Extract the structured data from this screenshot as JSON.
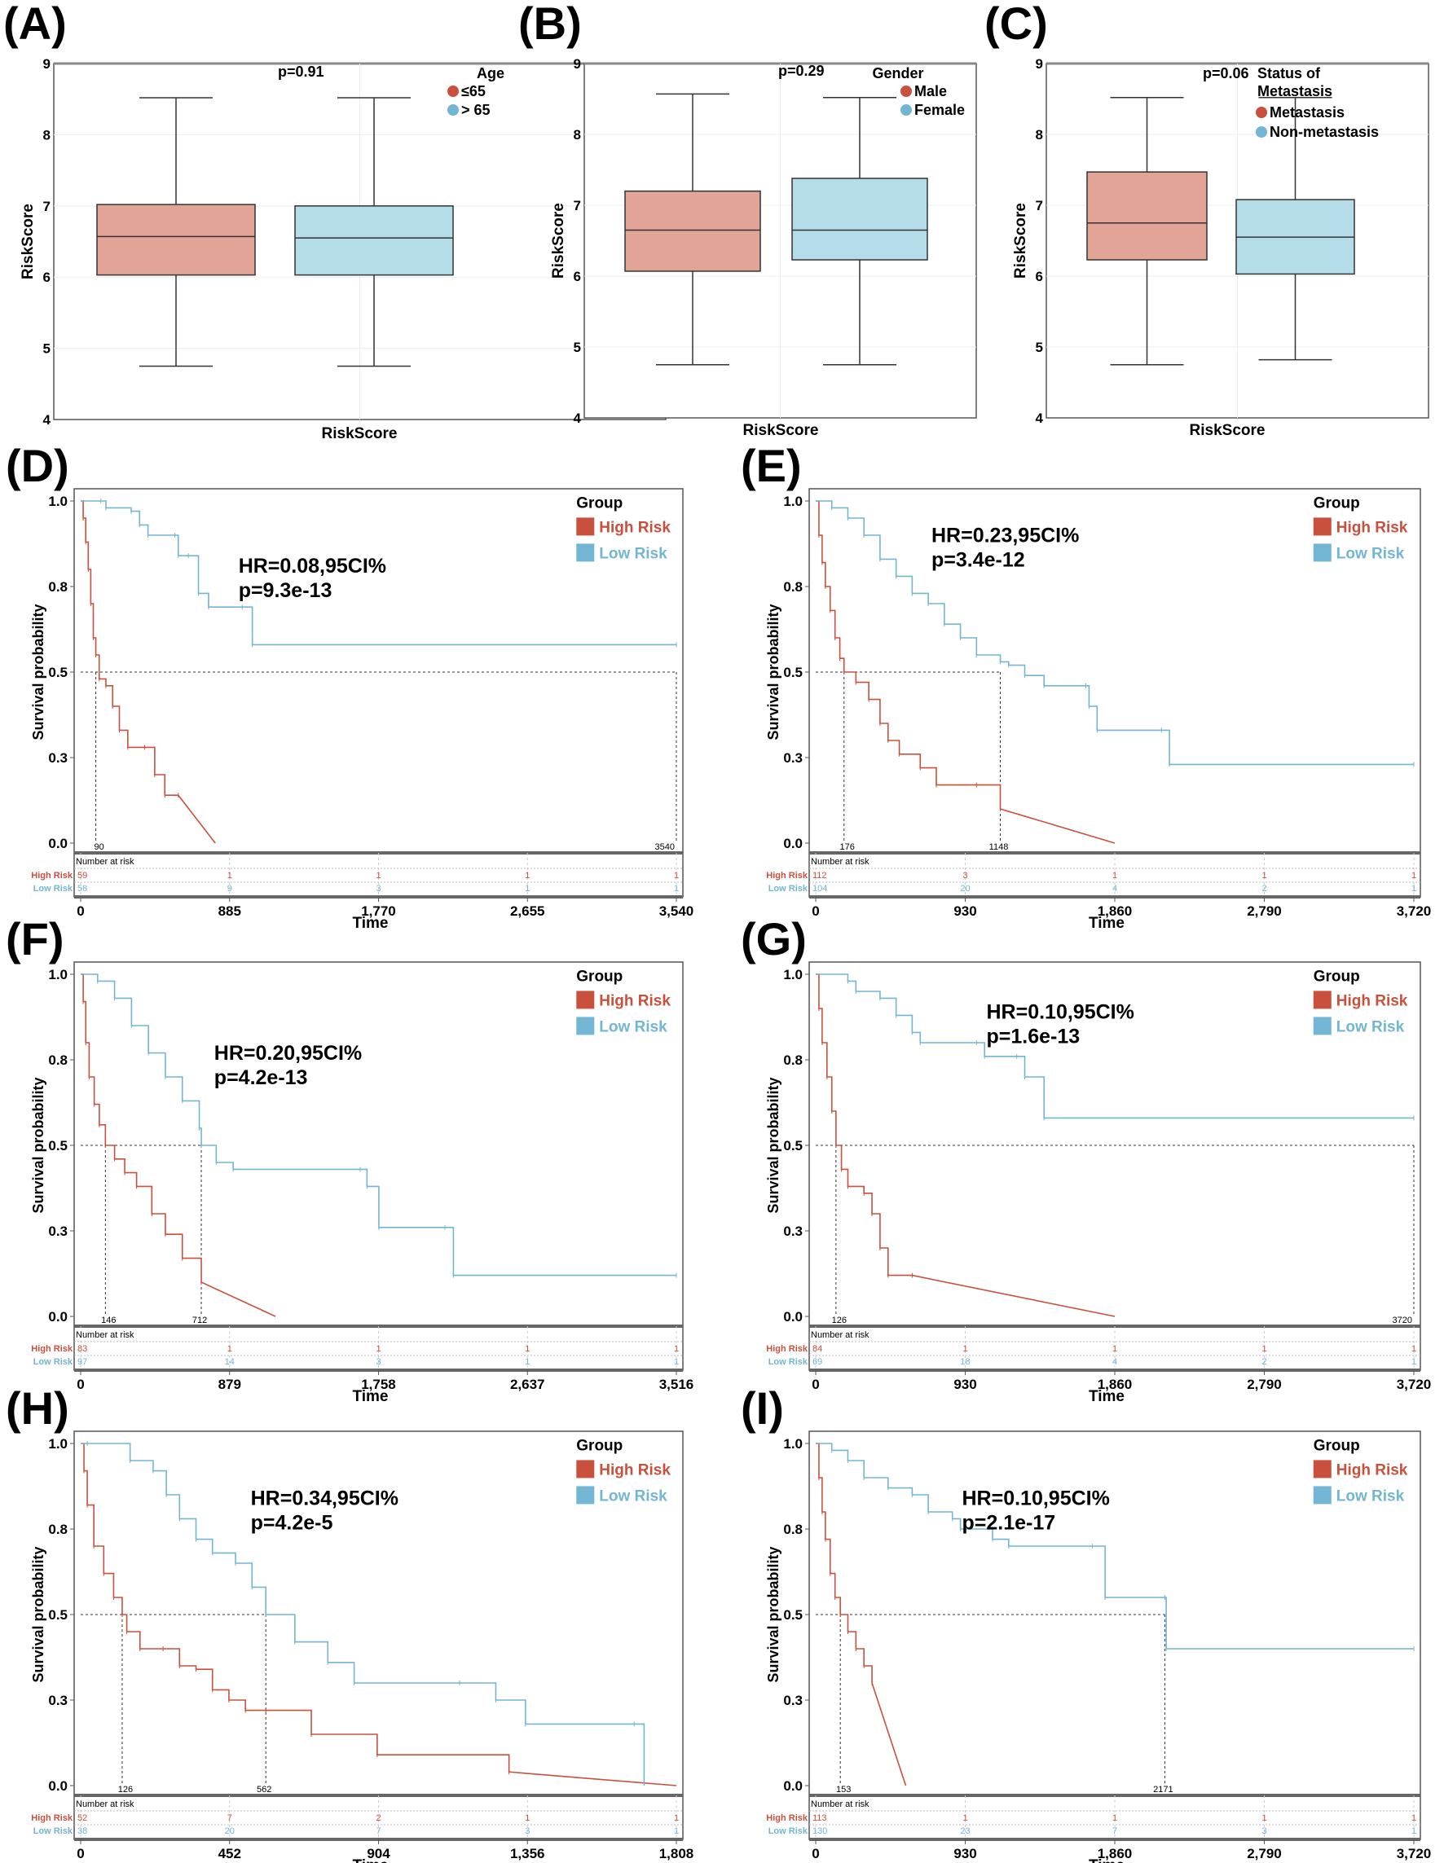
{
  "colors": {
    "high": "#c9503d",
    "low": "#72b6d3",
    "high_fill": "#e3a498",
    "low_fill": "#b4dde9",
    "grid": "#ececec"
  },
  "box_panels": [
    {
      "label": "(A)",
      "p": "p=0.91",
      "legend_title": [
        "Age"
      ],
      "groups": [
        "≤65",
        "> 65"
      ],
      "xlabel": "RiskScore",
      "ylabel": "RiskScore",
      "yticks": [
        "9",
        "8",
        "7",
        "6",
        "5",
        "4"
      ],
      "boxes": [
        {
          "min": 4.75,
          "q1": 6.03,
          "median": 6.57,
          "q3": 7.02,
          "max": 8.52
        },
        {
          "min": 4.75,
          "q1": 6.03,
          "median": 6.55,
          "q3": 7.0,
          "max": 8.52
        }
      ]
    },
    {
      "label": "(B)",
      "p": "p=0.29",
      "legend_title": [
        "Gender"
      ],
      "groups": [
        "Male",
        "Female"
      ],
      "xlabel": "RiskScore",
      "ylabel": "RiskScore",
      "yticks": [
        "9",
        "8",
        "7",
        "6",
        "5",
        "4"
      ],
      "boxes": [
        {
          "min": 4.75,
          "q1": 6.07,
          "median": 6.65,
          "q3": 7.2,
          "max": 8.57
        },
        {
          "min": 4.75,
          "q1": 6.23,
          "median": 6.65,
          "q3": 7.38,
          "max": 8.52
        }
      ]
    },
    {
      "label": "(C)",
      "p": "p=0.06",
      "legend_title": [
        "Status of",
        "Metastasis"
      ],
      "groups": [
        "Metastasis",
        "Non-metastasis"
      ],
      "xlabel": "RiskScore",
      "ylabel": "RiskScore",
      "yticks": [
        "9",
        "8",
        "7",
        "6",
        "5",
        "4"
      ],
      "boxes": [
        {
          "min": 4.75,
          "q1": 6.23,
          "median": 6.75,
          "q3": 7.47,
          "max": 8.52
        },
        {
          "min": 4.82,
          "q1": 6.03,
          "median": 6.55,
          "q3": 7.08,
          "max": 8.52
        }
      ]
    }
  ],
  "chart_data": [
    {
      "type": "line",
      "label": "(D)",
      "hr": "HR=0.08,95CI%",
      "p": "p=9.3e-13",
      "legend_title": "Group",
      "legend": [
        "High Risk",
        "Low Risk"
      ],
      "ylabel": "Survival probability",
      "xlabel": "Time",
      "yticks": [
        "1.0",
        "0.8",
        "0.5",
        "0.3",
        "0.0"
      ],
      "xticks": [
        "0",
        "885",
        "1,770",
        "2,655",
        "3,540"
      ],
      "medians": [
        "90",
        "3540"
      ],
      "risk_title": "Number at risk",
      "risk": {
        "high": [
          "59",
          "1",
          "1",
          "1",
          "1"
        ],
        "low": [
          "58",
          "9",
          "3",
          "1",
          "1"
        ]
      },
      "high": [
        [
          0,
          1
        ],
        [
          15,
          0.95
        ],
        [
          30,
          0.88
        ],
        [
          45,
          0.8
        ],
        [
          60,
          0.7
        ],
        [
          75,
          0.6
        ],
        [
          90,
          0.55
        ],
        [
          110,
          0.48
        ],
        [
          150,
          0.46
        ],
        [
          190,
          0.4
        ],
        [
          230,
          0.33
        ],
        [
          280,
          0.28
        ],
        [
          380,
          0.28
        ],
        [
          440,
          0.2
        ],
        [
          500,
          0.14
        ],
        [
          580,
          0.14
        ],
        [
          800,
          0
        ]
      ],
      "low": [
        [
          0,
          1
        ],
        [
          120,
          1
        ],
        [
          150,
          0.98
        ],
        [
          300,
          0.97
        ],
        [
          350,
          0.93
        ],
        [
          400,
          0.9
        ],
        [
          560,
          0.9
        ],
        [
          580,
          0.84
        ],
        [
          640,
          0.84
        ],
        [
          700,
          0.73
        ],
        [
          760,
          0.69
        ],
        [
          960,
          0.69
        ],
        [
          1020,
          0.58
        ],
        [
          3540,
          0.58
        ]
      ]
    },
    {
      "type": "line",
      "label": "(E)",
      "hr": "HR=0.23,95CI%",
      "p": "p=3.4e-12",
      "legend_title": "Group",
      "legend": [
        "High Risk",
        "Low Risk"
      ],
      "ylabel": "Survival probability",
      "xlabel": "Time",
      "yticks": [
        "1.0",
        "0.8",
        "0.5",
        "0.3",
        "0.0"
      ],
      "xticks": [
        "0",
        "930",
        "1,860",
        "2,790",
        "3,720"
      ],
      "medians": [
        "176",
        "1148"
      ],
      "risk_title": "Number at risk",
      "risk": {
        "high": [
          "112",
          "3",
          "1",
          "1",
          "1"
        ],
        "low": [
          "104",
          "20",
          "4",
          "2",
          "1"
        ]
      },
      "high": [
        [
          0,
          1
        ],
        [
          20,
          0.9
        ],
        [
          40,
          0.82
        ],
        [
          60,
          0.75
        ],
        [
          90,
          0.68
        ],
        [
          120,
          0.6
        ],
        [
          150,
          0.54
        ],
        [
          176,
          0.5
        ],
        [
          250,
          0.47
        ],
        [
          330,
          0.42
        ],
        [
          400,
          0.35
        ],
        [
          450,
          0.3
        ],
        [
          520,
          0.26
        ],
        [
          650,
          0.22
        ],
        [
          750,
          0.17
        ],
        [
          1000,
          0.17
        ],
        [
          1148,
          0.1
        ],
        [
          1860,
          0
        ]
      ],
      "low": [
        [
          0,
          1
        ],
        [
          100,
          0.98
        ],
        [
          200,
          0.95
        ],
        [
          300,
          0.9
        ],
        [
          400,
          0.83
        ],
        [
          500,
          0.78
        ],
        [
          600,
          0.73
        ],
        [
          700,
          0.7
        ],
        [
          800,
          0.64
        ],
        [
          900,
          0.6
        ],
        [
          1000,
          0.55
        ],
        [
          1148,
          0.53
        ],
        [
          1200,
          0.52
        ],
        [
          1300,
          0.49
        ],
        [
          1420,
          0.46
        ],
        [
          1680,
          0.46
        ],
        [
          1700,
          0.4
        ],
        [
          1750,
          0.33
        ],
        [
          2150,
          0.33
        ],
        [
          2200,
          0.23
        ],
        [
          3720,
          0.23
        ]
      ]
    },
    {
      "type": "line",
      "label": "(F)",
      "hr": "HR=0.20,95CI%",
      "p": "p=4.2e-13",
      "legend_title": "Group",
      "legend": [
        "High Risk",
        "Low Risk"
      ],
      "ylabel": "Survival probability",
      "xlabel": "Time",
      "yticks": [
        "1.0",
        "0.8",
        "0.5",
        "0.3",
        "0.0"
      ],
      "xticks": [
        "0",
        "879",
        "1,758",
        "2,637",
        "3,516"
      ],
      "medians": [
        "146",
        "712"
      ],
      "risk_title": "Number at risk",
      "risk": {
        "high": [
          "83",
          "1",
          "1",
          "1",
          "1"
        ],
        "low": [
          "97",
          "14",
          "3",
          "1",
          "1"
        ]
      },
      "high": [
        [
          0,
          1
        ],
        [
          15,
          0.92
        ],
        [
          30,
          0.8
        ],
        [
          50,
          0.7
        ],
        [
          80,
          0.62
        ],
        [
          110,
          0.56
        ],
        [
          146,
          0.5
        ],
        [
          200,
          0.46
        ],
        [
          260,
          0.42
        ],
        [
          330,
          0.38
        ],
        [
          420,
          0.3
        ],
        [
          500,
          0.24
        ],
        [
          600,
          0.17
        ],
        [
          712,
          0.1
        ],
        [
          1150,
          0
        ]
      ],
      "low": [
        [
          0,
          1
        ],
        [
          100,
          0.98
        ],
        [
          200,
          0.93
        ],
        [
          300,
          0.85
        ],
        [
          400,
          0.77
        ],
        [
          500,
          0.7
        ],
        [
          600,
          0.63
        ],
        [
          700,
          0.55
        ],
        [
          712,
          0.5
        ],
        [
          800,
          0.45
        ],
        [
          900,
          0.43
        ],
        [
          1650,
          0.43
        ],
        [
          1690,
          0.38
        ],
        [
          1760,
          0.26
        ],
        [
          2150,
          0.26
        ],
        [
          2200,
          0.12
        ],
        [
          3516,
          0.12
        ]
      ]
    },
    {
      "type": "line",
      "label": "(G)",
      "hr": "HR=0.10,95CI%",
      "p": "p=1.6e-13",
      "legend_title": "Group",
      "legend": [
        "High Risk",
        "Low Risk"
      ],
      "ylabel": "Survival probability",
      "xlabel": "Time",
      "yticks": [
        "1.0",
        "0.8",
        "0.5",
        "0.3",
        "0.0"
      ],
      "xticks": [
        "0",
        "930",
        "1,860",
        "2,790",
        "3,720"
      ],
      "medians": [
        "126",
        "3720"
      ],
      "risk_title": "Number at risk",
      "risk": {
        "high": [
          "84",
          "1",
          "1",
          "1",
          "1"
        ],
        "low": [
          "69",
          "18",
          "4",
          "2",
          "1"
        ]
      },
      "high": [
        [
          0,
          1
        ],
        [
          20,
          0.9
        ],
        [
          40,
          0.8
        ],
        [
          70,
          0.7
        ],
        [
          100,
          0.6
        ],
        [
          126,
          0.5
        ],
        [
          160,
          0.43
        ],
        [
          200,
          0.38
        ],
        [
          300,
          0.36
        ],
        [
          350,
          0.3
        ],
        [
          400,
          0.2
        ],
        [
          450,
          0.12
        ],
        [
          600,
          0.12
        ],
        [
          1860,
          0
        ]
      ],
      "low": [
        [
          0,
          1
        ],
        [
          200,
          0.98
        ],
        [
          250,
          0.95
        ],
        [
          400,
          0.93
        ],
        [
          500,
          0.88
        ],
        [
          600,
          0.83
        ],
        [
          650,
          0.8
        ],
        [
          1000,
          0.8
        ],
        [
          1050,
          0.76
        ],
        [
          1250,
          0.76
        ],
        [
          1300,
          0.7
        ],
        [
          1420,
          0.58
        ],
        [
          3720,
          0.58
        ]
      ]
    },
    {
      "type": "line",
      "label": "(H)",
      "hr": "HR=0.34,95CI%",
      "p": "p=4.2e-5",
      "legend_title": "Group",
      "legend": [
        "High Risk",
        "Low Risk"
      ],
      "ylabel": "Survival probability",
      "xlabel": "Time",
      "yticks": [
        "1.0",
        "0.8",
        "0.5",
        "0.3",
        "0.0"
      ],
      "xticks": [
        "0",
        "452",
        "904",
        "1,356",
        "1,808"
      ],
      "medians": [
        "126",
        "562"
      ],
      "risk_title": "Number at risk",
      "risk": {
        "high": [
          "52",
          "7",
          "2",
          "1",
          "1"
        ],
        "low": [
          "38",
          "20",
          "7",
          "3",
          "1"
        ]
      },
      "high": [
        [
          0,
          1
        ],
        [
          10,
          0.92
        ],
        [
          20,
          0.82
        ],
        [
          40,
          0.7
        ],
        [
          70,
          0.62
        ],
        [
          100,
          0.55
        ],
        [
          126,
          0.5
        ],
        [
          140,
          0.45
        ],
        [
          180,
          0.4
        ],
        [
          250,
          0.4
        ],
        [
          300,
          0.35
        ],
        [
          350,
          0.34
        ],
        [
          400,
          0.28
        ],
        [
          450,
          0.25
        ],
        [
          500,
          0.22
        ],
        [
          562,
          0.22
        ],
        [
          700,
          0.15
        ],
        [
          900,
          0.09
        ],
        [
          1300,
          0.04
        ],
        [
          1808,
          0
        ]
      ],
      "low": [
        [
          0,
          1
        ],
        [
          20,
          1
        ],
        [
          150,
          0.95
        ],
        [
          220,
          0.92
        ],
        [
          260,
          0.85
        ],
        [
          300,
          0.78
        ],
        [
          350,
          0.72
        ],
        [
          400,
          0.68
        ],
        [
          470,
          0.65
        ],
        [
          520,
          0.58
        ],
        [
          562,
          0.5
        ],
        [
          650,
          0.42
        ],
        [
          750,
          0.36
        ],
        [
          830,
          0.3
        ],
        [
          1150,
          0.3
        ],
        [
          1260,
          0.25
        ],
        [
          1350,
          0.18
        ],
        [
          1680,
          0.18
        ],
        [
          1710,
          0
        ]
      ]
    },
    {
      "type": "line",
      "label": "(I)",
      "hr": "HR=0.10,95CI%",
      "p": "p=2.1e-17",
      "legend_title": "Group",
      "legend": [
        "High Risk",
        "Low Risk"
      ],
      "ylabel": "Survival probability",
      "xlabel": "Time",
      "yticks": [
        "1.0",
        "0.8",
        "0.5",
        "0.3",
        "0.0"
      ],
      "xticks": [
        "0",
        "930",
        "1,860",
        "2,790",
        "3,720"
      ],
      "medians": [
        "153",
        "2171"
      ],
      "risk_title": "Number at risk",
      "risk": {
        "high": [
          "113",
          "1",
          "1",
          "1",
          "1"
        ],
        "low": [
          "130",
          "23",
          "7",
          "3",
          "1"
        ]
      },
      "high": [
        [
          0,
          1
        ],
        [
          20,
          0.9
        ],
        [
          40,
          0.8
        ],
        [
          60,
          0.72
        ],
        [
          90,
          0.62
        ],
        [
          120,
          0.55
        ],
        [
          153,
          0.5
        ],
        [
          200,
          0.45
        ],
        [
          250,
          0.4
        ],
        [
          300,
          0.35
        ],
        [
          350,
          0.3
        ],
        [
          560,
          0
        ]
      ],
      "low": [
        [
          0,
          1
        ],
        [
          100,
          0.98
        ],
        [
          200,
          0.95
        ],
        [
          300,
          0.9
        ],
        [
          450,
          0.87
        ],
        [
          600,
          0.85
        ],
        [
          700,
          0.8
        ],
        [
          850,
          0.78
        ],
        [
          900,
          0.75
        ],
        [
          1100,
          0.72
        ],
        [
          1200,
          0.7
        ],
        [
          1720,
          0.7
        ],
        [
          1800,
          0.55
        ],
        [
          2171,
          0.55
        ],
        [
          2180,
          0.4
        ],
        [
          3720,
          0.4
        ]
      ]
    }
  ]
}
